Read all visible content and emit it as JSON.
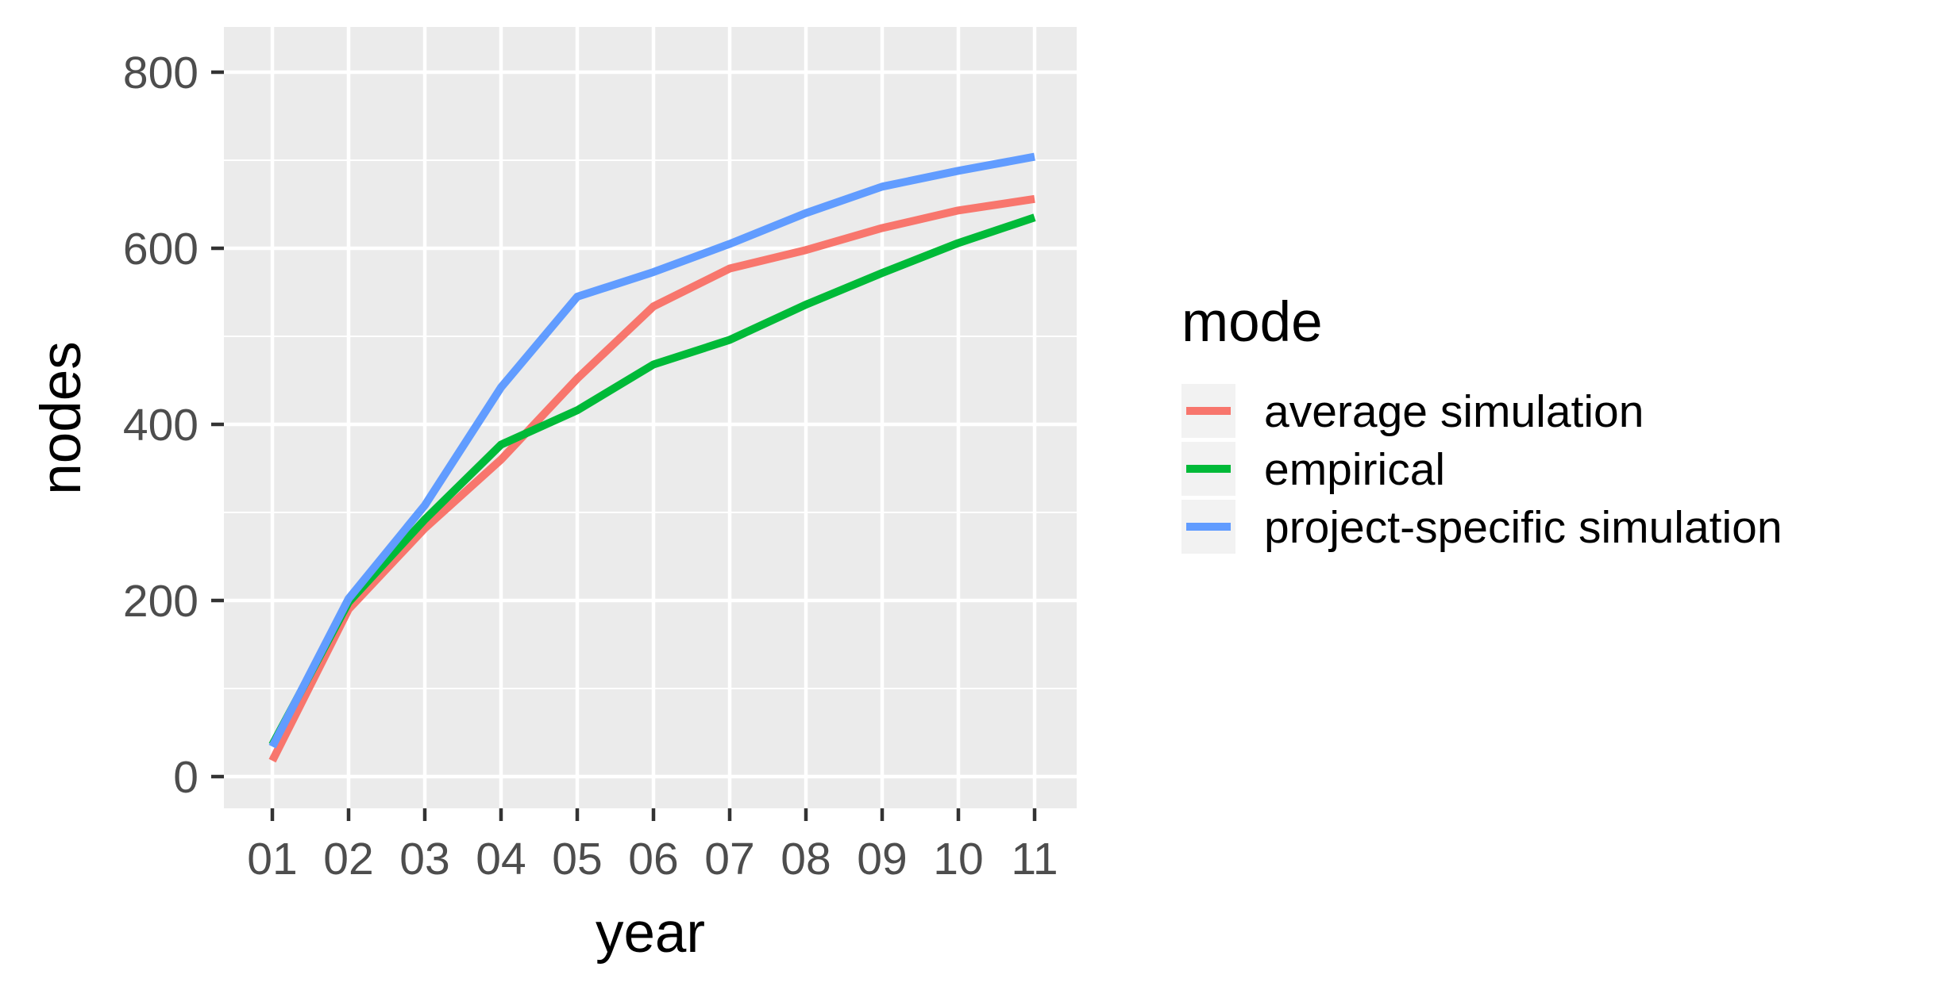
{
  "chart_data": {
    "type": "line",
    "xlabel": "year",
    "ylabel": "nodes",
    "categories": [
      "01",
      "02",
      "03",
      "04",
      "05",
      "06",
      "07",
      "08",
      "09",
      "10",
      "11"
    ],
    "ylim": [
      -40,
      840
    ],
    "yticks": [
      0,
      200,
      400,
      600,
      800
    ],
    "grid": true,
    "legend": {
      "title": "mode",
      "position": "right"
    },
    "series": [
      {
        "name": "average simulation",
        "color": "#F8766D",
        "values": [
          18,
          190,
          282,
          360,
          452,
          534,
          577,
          598,
          623,
          643,
          656
        ]
      },
      {
        "name": "empirical",
        "color": "#00BA38",
        "values": [
          36,
          198,
          292,
          377,
          416,
          468,
          496,
          536,
          572,
          606,
          635
        ]
      },
      {
        "name": "project-specific simulation",
        "color": "#619CFF",
        "values": [
          34,
          202,
          308,
          442,
          545,
          573,
          605,
          640,
          670,
          688,
          704
        ]
      }
    ],
    "colors": {
      "panel": "#EBEBEB",
      "grid": "#FFFFFF",
      "tick": "#333333",
      "legend_key": "#F2F2F2"
    }
  }
}
